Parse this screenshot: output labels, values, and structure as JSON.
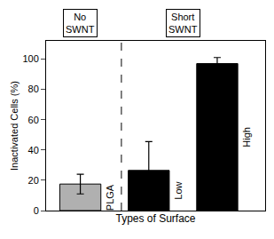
{
  "chart_data": {
    "type": "bar",
    "categories": [
      "PLGA",
      "Low",
      "High"
    ],
    "values": [
      17.5,
      26.5,
      97.0
    ],
    "errors": [
      6.5,
      19.0,
      4.0
    ],
    "colors": [
      "#b0b0b0",
      "#000000",
      "#000000"
    ],
    "xlabel": "Types of Surface",
    "ylabel": "Inactivated Cells (%)",
    "ylim": [
      0,
      112
    ],
    "yticks": [
      0,
      20,
      40,
      60,
      80,
      100
    ],
    "annotations": [
      "No\nSWNT",
      "Short\nSWNT"
    ],
    "grid": false,
    "tick_labels": "y"
  }
}
